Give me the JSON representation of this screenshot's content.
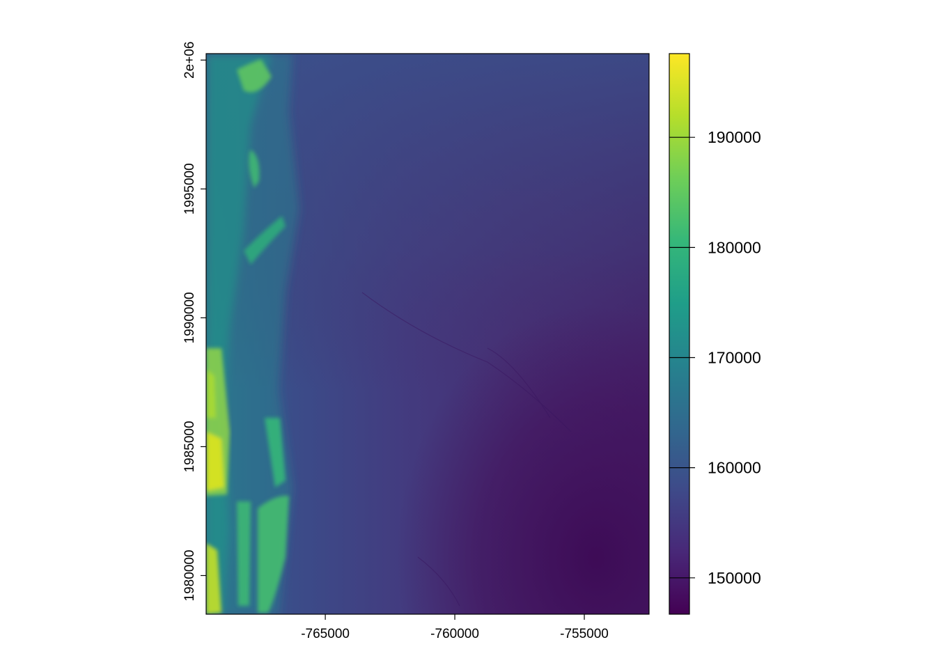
{
  "chart_data": {
    "type": "heatmap",
    "title": "",
    "xlabel": "",
    "ylabel": "",
    "x_ticks": [
      {
        "value": -765000,
        "label": "-765000"
      },
      {
        "value": -760000,
        "label": "-760000"
      },
      {
        "value": -755000,
        "label": "-755000"
      }
    ],
    "y_ticks": [
      {
        "value": 1980000,
        "label": "1980000"
      },
      {
        "value": 1985000,
        "label": "1985000"
      },
      {
        "value": 1990000,
        "label": "1990000"
      },
      {
        "value": 1995000,
        "label": "1995000"
      },
      {
        "value": 2000000,
        "label": "2e+06"
      }
    ],
    "xlim": [
      -769600,
      -752500
    ],
    "ylim": [
      1978500,
      2000250
    ],
    "colorbar": {
      "range": [
        146700,
        197600
      ],
      "ticks": [
        {
          "value": 150000,
          "label": "150000"
        },
        {
          "value": 160000,
          "label": "160000"
        },
        {
          "value": 170000,
          "label": "170000"
        },
        {
          "value": 180000,
          "label": "180000"
        },
        {
          "value": 190000,
          "label": "190000"
        }
      ],
      "colormap": "viridis",
      "colors": [
        "#440154",
        "#482878",
        "#3e4a89",
        "#31688e",
        "#26828e",
        "#1f9e89",
        "#35b779",
        "#6ece58",
        "#b5de2b",
        "#fde725"
      ]
    },
    "description_features": {
      "high_values_region": "west (left) edge, ridges near x -769000 to -766500",
      "low_values_region": "south-east corner near x -755000, y 1980000"
    }
  }
}
